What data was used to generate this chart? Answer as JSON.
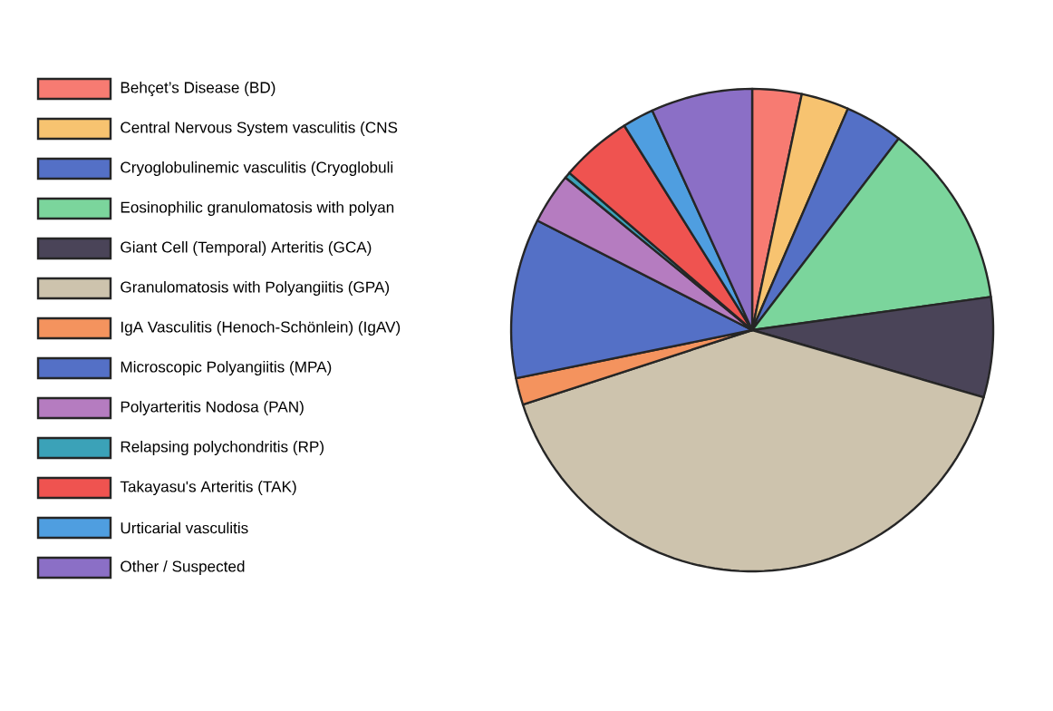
{
  "chart_data": {
    "type": "pie",
    "categories": [
      "Behçet’s Disease (BD)",
      "Central Nervous System vasculitis (CNS",
      "Cryoglobulinemic vasculitis (Cryoglobuli",
      "Eosinophilic granulomatosis with polyan",
      "Giant Cell (Temporal) Arteritis (GCA)",
      "Granulomatosis with Polyangiitis (GPA)",
      "IgA Vasculitis (Henoch-Schönlein) (IgAV)",
      "Microscopic Polyangiitis (MPA)",
      "Polyarteritis Nodosa (PAN)",
      "Relapsing polychondritis (RP)",
      "Takayasu's Arteritis (TAK)",
      "Urticarial vasculitis",
      "Other / Suspected"
    ],
    "values": [
      3.3,
      3.2,
      3.9,
      12.4,
      6.7,
      40.5,
      1.8,
      10.7,
      3.4,
      0.4,
      4.8,
      2.1,
      6.8
    ],
    "colors": [
      "#f77b72",
      "#f7c370",
      "#5470c6",
      "#7bd59c",
      "#4a4458",
      "#cdc3ad",
      "#f4935e",
      "#5470c6",
      "#b57cc0",
      "#3ba2b8",
      "#ef5350",
      "#4f9ee0",
      "#8b6fc6"
    ],
    "legend": "left"
  }
}
